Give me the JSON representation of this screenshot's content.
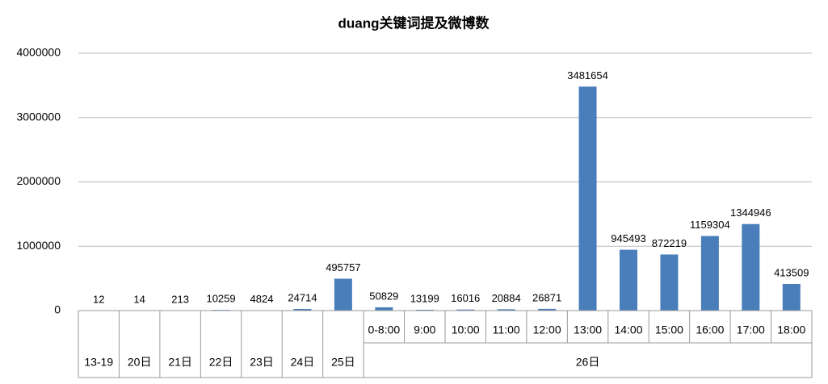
{
  "chart_data": {
    "type": "bar",
    "title": "duang关键词提及微博数",
    "categories": [
      "13-19",
      "20日",
      "21日",
      "22日",
      "23日",
      "24日",
      "25日",
      "0-8:00",
      "9:00",
      "10:00",
      "11:00",
      "12:00",
      "13:00",
      "14:00",
      "15:00",
      "16:00",
      "17:00",
      "18:00"
    ],
    "group": {
      "label": "26日",
      "first": 7
    },
    "values": [
      12,
      14,
      213,
      10259,
      4824,
      24714,
      495757,
      50829,
      13199,
      16016,
      20884,
      26871,
      3481654,
      945493,
      872219,
      1159304,
      1344946,
      413509
    ],
    "color": "#4a7ebb",
    "ylim": [
      0,
      4000000
    ],
    "yticks": [
      0,
      1000000,
      2000000,
      3000000,
      4000000
    ],
    "grid": true
  }
}
